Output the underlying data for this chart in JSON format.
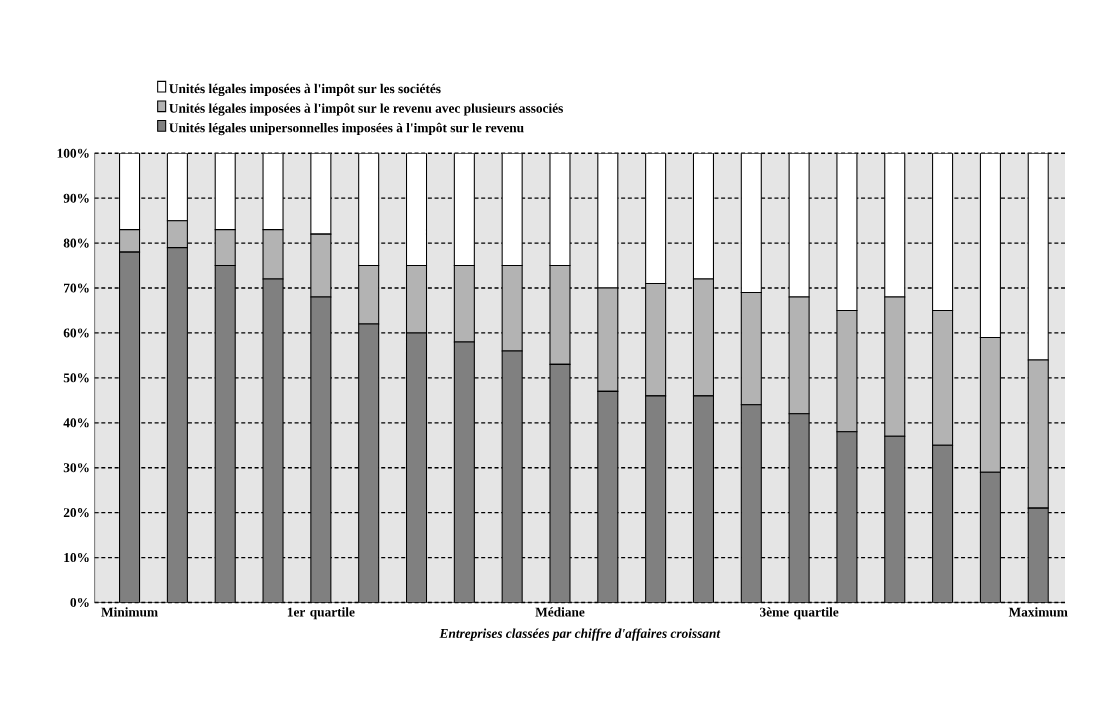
{
  "chart_data": {
    "type": "bar",
    "stacked": true,
    "xlabel": "Entreprises classées par chiffre d'affaires croissant",
    "categories": [
      "Minimum",
      null,
      null,
      null,
      "1er quartile",
      null,
      null,
      null,
      null,
      "Médiane",
      null,
      null,
      null,
      null,
      "3ème quartile",
      null,
      null,
      null,
      null,
      "Maximum"
    ],
    "series": [
      {
        "name": "Unités légales unipersonnelles imposées à l'impôt sur le revenu",
        "color": "#808080",
        "values": [
          78,
          79,
          75,
          72,
          68,
          62,
          60,
          58,
          56,
          53,
          47,
          46,
          46,
          44,
          42,
          38,
          37,
          35,
          29,
          21
        ]
      },
      {
        "name": "Unités légales imposées à l'impôt sur le revenu avec plusieurs associés",
        "color": "#b3b3b3",
        "values": [
          5,
          6,
          8,
          11,
          14,
          13,
          15,
          17,
          19,
          22,
          23,
          25,
          26,
          25,
          26,
          27,
          31,
          30,
          30,
          33
        ]
      },
      {
        "name": "Unités légales imposées à l'impôt sur les sociétés",
        "color": "#ffffff",
        "values": [
          17,
          15,
          17,
          17,
          18,
          25,
          25,
          25,
          25,
          25,
          30,
          29,
          28,
          31,
          32,
          35,
          32,
          35,
          41,
          46
        ]
      }
    ],
    "ylim": [
      0,
      100
    ],
    "yticks": [
      {
        "value": 0,
        "label": "0%"
      },
      {
        "value": 10,
        "label": "10%"
      },
      {
        "value": 20,
        "label": "20%"
      },
      {
        "value": 30,
        "label": "30%"
      },
      {
        "value": 40,
        "label": "40%"
      },
      {
        "value": 50,
        "label": "50%"
      },
      {
        "value": 60,
        "label": "60%"
      },
      {
        "value": 70,
        "label": "70%"
      },
      {
        "value": 80,
        "label": "80%"
      },
      {
        "value": 90,
        "label": "90%"
      },
      {
        "value": 100,
        "label": "100%"
      }
    ],
    "grid": "y",
    "legend": "top"
  }
}
